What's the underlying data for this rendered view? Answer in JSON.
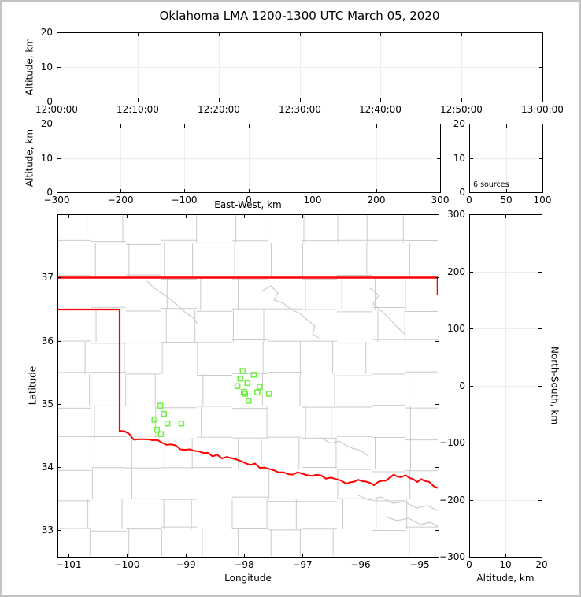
{
  "title": "Oklahoma LMA 1200-1300 UTC March 05, 2020",
  "colors": {
    "station_green": "#6DF33F",
    "state_border_red": "#FF0000",
    "county_line_gray": "#CBCBCB",
    "grid_line": "#EDEDED",
    "frame": "#000000",
    "outer_border": "#C3C3C3",
    "background": "#FFFFFF"
  },
  "chart_data": [
    {
      "id": "time_altitude_panel",
      "type": "scatter",
      "xlabel": "",
      "ylabel": "Altitude, km",
      "x_tick_labels": [
        "12:00:00",
        "12:10:00",
        "12:20:00",
        "12:30:00",
        "12:40:00",
        "12:50:00",
        "13:00:00"
      ],
      "x_tick_values": [
        0,
        10,
        20,
        30,
        40,
        50,
        60
      ],
      "xlim": [
        0,
        60
      ],
      "y_tick_labels": [
        "0",
        "10",
        "20"
      ],
      "y_tick_values": [
        0,
        10,
        20
      ],
      "ylim": [
        0,
        20
      ],
      "grid": true,
      "points": []
    },
    {
      "id": "eastwest_altitude_panel",
      "type": "scatter",
      "xlabel": "East-West, km",
      "ylabel": "Altitude, km",
      "x_tick_labels": [
        "−300",
        "−200",
        "−100",
        "0",
        "100",
        "200",
        "300"
      ],
      "x_tick_values": [
        -300,
        -200,
        -100,
        0,
        100,
        200,
        300
      ],
      "xlim": [
        -300,
        300
      ],
      "y_tick_labels": [
        "0",
        "10",
        "20"
      ],
      "y_tick_values": [
        0,
        10,
        20
      ],
      "ylim": [
        0,
        20
      ],
      "grid": true,
      "points": []
    },
    {
      "id": "altitude_histogram_panel",
      "type": "line",
      "xlabel": "",
      "ylabel": "",
      "annotation": "6 sources",
      "x_tick_labels": [
        "0",
        "50",
        "100"
      ],
      "x_tick_values": [
        0,
        50,
        100
      ],
      "xlim": [
        0,
        100
      ],
      "y_tick_labels": [
        "0",
        "10",
        "20"
      ],
      "y_tick_values": [
        0,
        10,
        20
      ],
      "ylim": [
        0,
        20
      ],
      "grid": true,
      "points": []
    },
    {
      "id": "plan_view_map_panel",
      "type": "scatter",
      "xlabel": "Longitude",
      "ylabel": "Latitude",
      "x_tick_labels": [
        "−101",
        "−100",
        "−99",
        "−98",
        "−97",
        "−96",
        "−95"
      ],
      "x_tick_values": [
        -101,
        -100,
        -99,
        -98,
        -97,
        -96,
        -95
      ],
      "xlim": [
        -101.19,
        -94.67
      ],
      "y_tick_labels": [
        "33",
        "34",
        "35",
        "36",
        "37"
      ],
      "y_tick_values": [
        33,
        34,
        35,
        36,
        37
      ],
      "ylim": [
        32.58,
        38.0
      ],
      "grid": false,
      "stations": [
        {
          "lon": -98.02,
          "lat": 35.52
        },
        {
          "lon": -97.83,
          "lat": 35.46
        },
        {
          "lon": -98.06,
          "lat": 35.4
        },
        {
          "lon": -97.94,
          "lat": 35.33
        },
        {
          "lon": -98.11,
          "lat": 35.28
        },
        {
          "lon": -97.73,
          "lat": 35.27
        },
        {
          "lon": -98.0,
          "lat": 35.19
        },
        {
          "lon": -97.98,
          "lat": 35.16
        },
        {
          "lon": -97.77,
          "lat": 35.18
        },
        {
          "lon": -97.57,
          "lat": 35.16
        },
        {
          "lon": -97.92,
          "lat": 35.05
        },
        {
          "lon": -99.43,
          "lat": 34.97
        },
        {
          "lon": -99.37,
          "lat": 34.84
        },
        {
          "lon": -99.53,
          "lat": 34.75
        },
        {
          "lon": -99.31,
          "lat": 34.69
        },
        {
          "lon": -99.07,
          "lat": 34.69
        },
        {
          "lon": -99.49,
          "lat": 34.59
        },
        {
          "lon": -99.42,
          "lat": 34.52
        }
      ],
      "points": []
    },
    {
      "id": "northsouth_altitude_panel",
      "type": "scatter",
      "xlabel": "Altitude, km",
      "ylabel": "North-South, km",
      "x_tick_labels": [
        "0",
        "10",
        "20"
      ],
      "x_tick_values": [
        0,
        10,
        20
      ],
      "xlim": [
        0,
        20
      ],
      "y_tick_labels": [
        "300",
        "200",
        "100",
        "0",
        "−100",
        "−200",
        "−300"
      ],
      "y_tick_values": [
        300,
        200,
        100,
        0,
        -100,
        -200,
        -300
      ],
      "ylim": [
        -300,
        300
      ],
      "grid": true,
      "points": []
    }
  ]
}
